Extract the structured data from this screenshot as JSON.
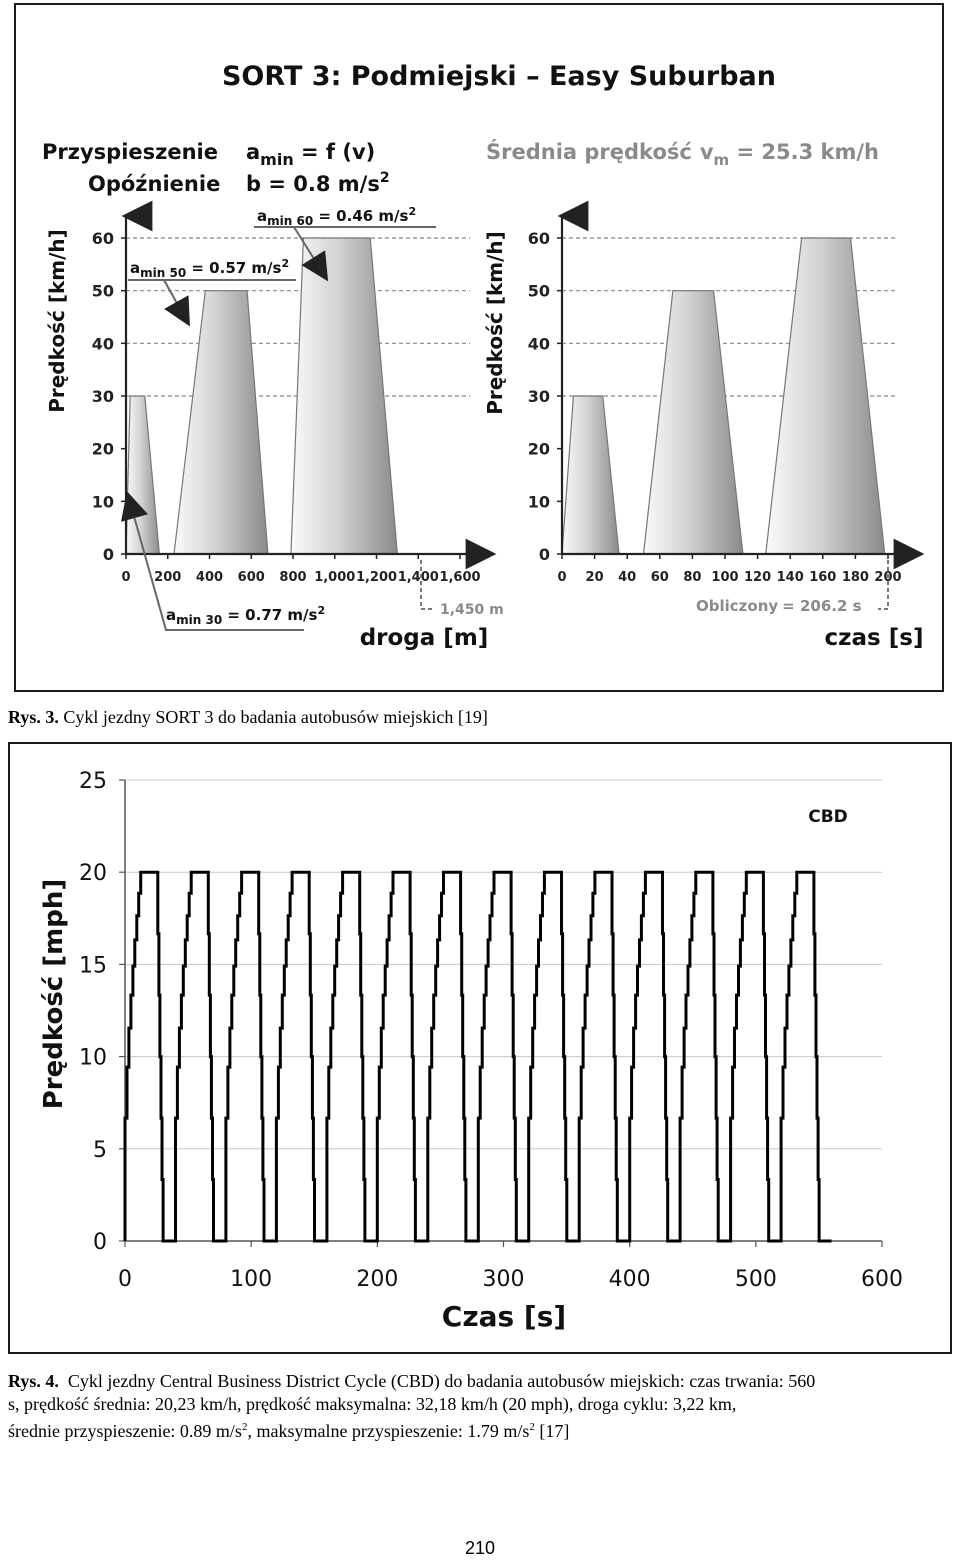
{
  "figure3": {
    "title": "SORT 3: Podmiejski – Easy Suburban",
    "accel_label": "Przyspieszenie",
    "accel_formula_main": "a",
    "accel_formula_sub": "min",
    "accel_formula_rest": " = f (v)",
    "decel_label": "Opóźnienie",
    "decel_formula": "b = 0.8 m/s",
    "decel_formula_sup": "2",
    "avg_speed_label": "Średnia prędkość",
    "avg_speed_symbol": "v",
    "avg_speed_sub": "m",
    "avg_speed_value": " = 25.3 km/h",
    "annotations": {
      "amin60_main": "a",
      "amin60_sub": "min 60",
      "amin60_val": " = 0.46 m/s",
      "amin60_sup": "2",
      "amin50_main": "a",
      "amin50_sub": "min 50",
      "amin50_val": " = 0.57 m/s",
      "amin50_sup": "2",
      "amin30_main": "a",
      "amin30_sub": "min 30",
      "amin30_val": " = 0.77 m/s",
      "amin30_sup": "2",
      "distance_end": "1,450 m",
      "computed_label": "Obliczony",
      "computed_value": "= 206.2 s"
    },
    "left_chart": {
      "ylabel": "Prędkość [km/h]",
      "xlabel": "droga [m]"
    },
    "right_chart": {
      "ylabel": "Prędkość [km/h]",
      "xlabel": "czas [s]"
    }
  },
  "caption3": {
    "prefix": "Rys. 3.",
    "text": "Cykl jezdny SORT 3 do badania autobusów miejskich [19]"
  },
  "figure4": {
    "label": "CBD"
  },
  "caption4": {
    "prefix": "Rys. 4.",
    "line1": "Cykl jezdny Central Business District Cycle (CBD) do badania autobusów miejskich: czas trwania: 560",
    "line2": "s, prędkość średnia: 20,23 km/h, prędkość maksymalna: 32,18 km/h (20 mph), droga cyklu: 3,22 km,",
    "line3_a": "średnie przyspieszenie: 0.89 m/s",
    "line3_sup1": "2",
    "line3_b": ", maksymalne przyspieszenie: 1.79 m/s",
    "line3_sup2": "2",
    "line3_c": " [17]"
  },
  "page_number": "210",
  "chart_data": [
    {
      "type": "area",
      "title": "",
      "ylabel": "Prędkość [km/h]",
      "xlabel": "droga [m]",
      "x_ticks": [
        "0",
        "200",
        "400",
        "600",
        "800",
        "1,000",
        "1,200",
        "1,400",
        "1,600"
      ],
      "y_ticks": [
        0,
        10,
        20,
        30,
        40,
        50,
        60
      ],
      "xlim": [
        0,
        1600
      ],
      "ylim": [
        0,
        60
      ],
      "guide_lines_y": [
        30,
        40,
        50,
        60
      ],
      "x": [
        0,
        20,
        90,
        160,
        230,
        380,
        580,
        680,
        790,
        850,
        1170,
        1300,
        1380
      ],
      "y": [
        0,
        30,
        30,
        0,
        0,
        50,
        50,
        0,
        0,
        60,
        60,
        0,
        0
      ]
    },
    {
      "type": "area",
      "title": "",
      "ylabel": "Prędkość [km/h]",
      "xlabel": "czas [s]",
      "x_ticks": [
        "0",
        "20",
        "40",
        "60",
        "80",
        "100",
        "120",
        "140",
        "160",
        "180",
        "200"
      ],
      "y_ticks": [
        0,
        10,
        20,
        30,
        40,
        50,
        60
      ],
      "xlim": [
        0,
        200
      ],
      "ylim": [
        0,
        60
      ],
      "guide_lines_y": [
        30,
        40,
        50,
        60
      ],
      "x": [
        0,
        7,
        25,
        35,
        50,
        68,
        93,
        111,
        125,
        147,
        177,
        198,
        200
      ],
      "y": [
        0,
        30,
        30,
        0,
        0,
        50,
        50,
        0,
        0,
        60,
        60,
        0,
        0
      ]
    },
    {
      "type": "line",
      "title": "",
      "xlabel": "Czas [s]",
      "ylabel": "Prędkość [mph]",
      "x_ticks": [
        0,
        100,
        200,
        300,
        400,
        500,
        600
      ],
      "y_ticks": [
        0,
        5,
        10,
        15,
        20,
        25
      ],
      "xlim": [
        0,
        600
      ],
      "ylim": [
        0,
        25
      ],
      "grid": true,
      "series": [
        {
          "name": "CBD",
          "cycles": 14,
          "cycle_period_s": 40,
          "accel_s": 14,
          "cruise_s": 12,
          "decel_s": 5,
          "idle_s": 9,
          "max_speed": 20,
          "end_time_s": 560
        }
      ]
    }
  ]
}
